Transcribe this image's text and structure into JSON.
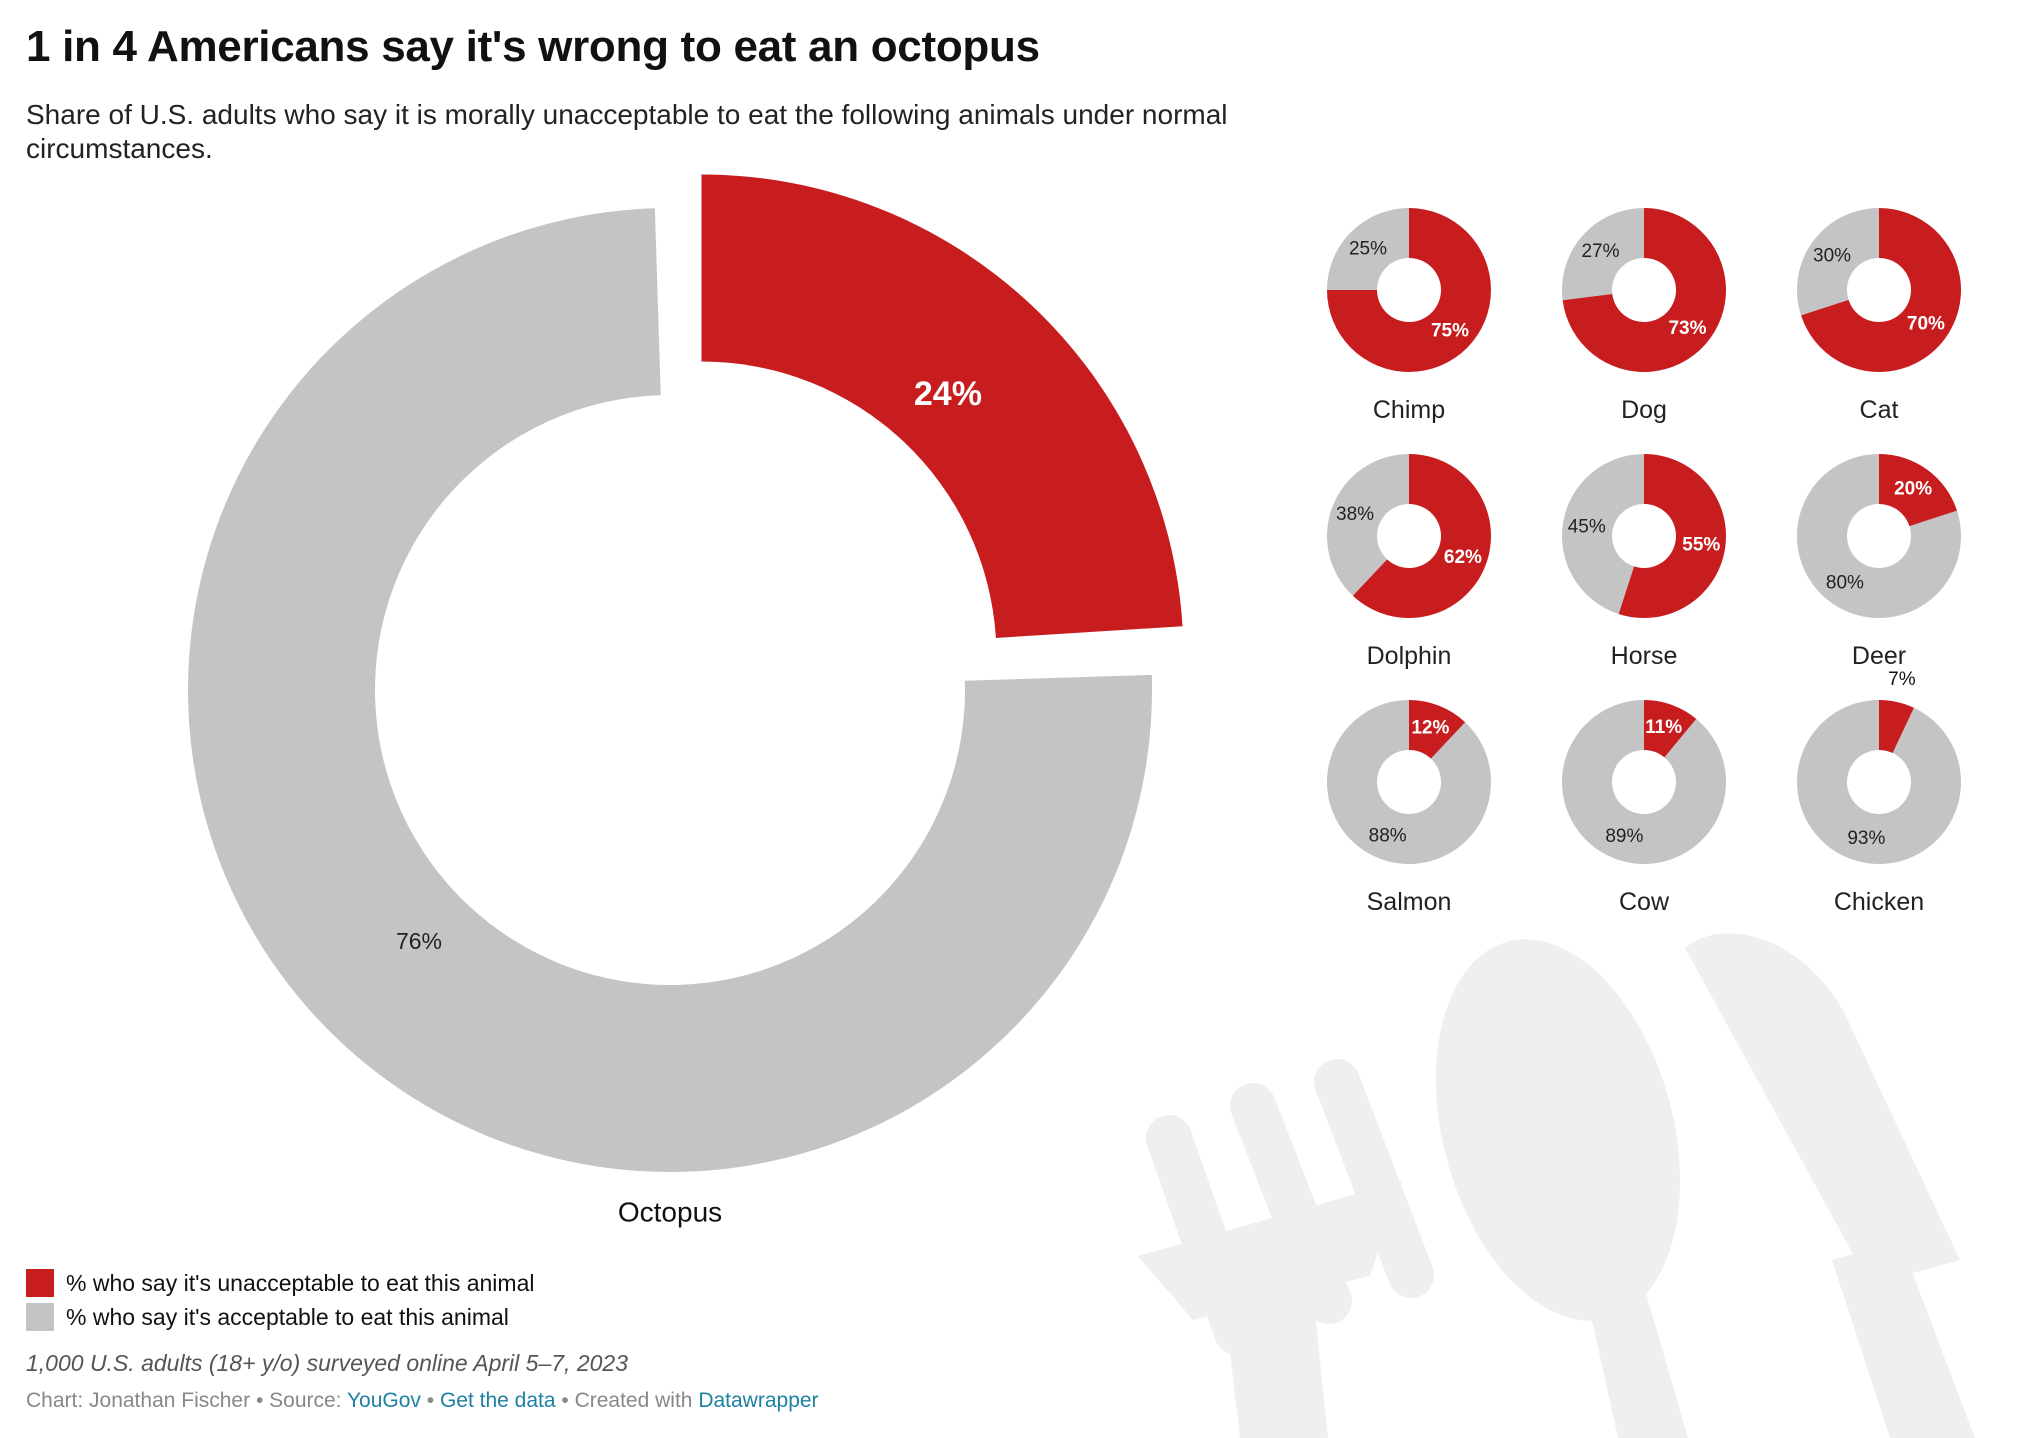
{
  "title": "1 in 4 Americans say it's wrong to eat an octopus",
  "subtitle": "Share of U.S. adults who say it is morally unacceptable to eat the following animals under normal circumstances.",
  "colors": {
    "unacceptable": "#c81d1f",
    "acceptable": "#c4c4c4",
    "watermark": "#efefef"
  },
  "chart_data": {
    "type": "pie",
    "variant": "donut small multiples",
    "series": [
      {
        "name": "% who say it's unacceptable to eat this animal"
      },
      {
        "name": "% who say it's acceptable to eat this animal"
      }
    ],
    "main": {
      "label": "Octopus",
      "unacceptable": 24,
      "acceptable": 76,
      "unacceptable_label": "24%",
      "acceptable_label": "76%"
    },
    "small": [
      {
        "label": "Chimp",
        "unacceptable": 75,
        "acceptable": 25,
        "unacceptable_label": "75%",
        "acceptable_label": "25%"
      },
      {
        "label": "Dog",
        "unacceptable": 73,
        "acceptable": 27,
        "unacceptable_label": "73%",
        "acceptable_label": "27%"
      },
      {
        "label": "Cat",
        "unacceptable": 70,
        "acceptable": 30,
        "unacceptable_label": "70%",
        "acceptable_label": "30%"
      },
      {
        "label": "Dolphin",
        "unacceptable": 62,
        "acceptable": 38,
        "unacceptable_label": "62%",
        "acceptable_label": "38%"
      },
      {
        "label": "Horse",
        "unacceptable": 55,
        "acceptable": 45,
        "unacceptable_label": "55%",
        "acceptable_label": "45%"
      },
      {
        "label": "Deer",
        "unacceptable": 20,
        "acceptable": 80,
        "unacceptable_label": "20%",
        "acceptable_label": "80%"
      },
      {
        "label": "Salmon",
        "unacceptable": 12,
        "acceptable": 88,
        "unacceptable_label": "12%",
        "acceptable_label": "88%"
      },
      {
        "label": "Cow",
        "unacceptable": 11,
        "acceptable": 89,
        "unacceptable_label": "11%",
        "acceptable_label": "89%"
      },
      {
        "label": "Chicken",
        "unacceptable": 7,
        "acceptable": 93,
        "unacceptable_label": "7%",
        "acceptable_label": "93%"
      }
    ]
  },
  "legend": [
    {
      "label": "% who say it's unacceptable to eat this animal",
      "color": "#c81d1f"
    },
    {
      "label": "% who say it's acceptable to eat this animal",
      "color": "#c4c4c4"
    }
  ],
  "note": "1,000 U.S. adults (18+ y/o) surveyed online April 5–7, 2023",
  "footer": {
    "chart_prefix": "Chart: Jonathan Fischer",
    "separator": " • ",
    "source_prefix": "Source: ",
    "source_link": "YouGov",
    "data_link": "Get the data",
    "created_prefix": "Created with ",
    "created_link": "Datawrapper"
  },
  "watermark_icons": [
    "fork-icon",
    "spoon-icon",
    "knife-icon"
  ]
}
